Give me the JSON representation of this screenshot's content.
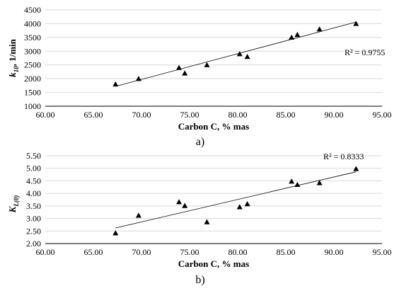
{
  "chart_data": [
    {
      "type": "scatter",
      "panel_label": "a)",
      "xlabel": "Carbon C, % mas",
      "ylabel_main": "k",
      "ylabel_sub": "10",
      "ylabel_rest": ", 1/min",
      "xlim": [
        60,
        95
      ],
      "ylim": [
        1000,
        4500
      ],
      "xticks": [
        "60.00",
        "65.00",
        "70.00",
        "75.00",
        "80.00",
        "85.00",
        "90.00",
        "95.00"
      ],
      "yticks": [
        "1000",
        "1500",
        "2000",
        "2500",
        "3000",
        "3500",
        "4000",
        "4500"
      ],
      "xtick_values": [
        60,
        65,
        70,
        75,
        80,
        85,
        90,
        95
      ],
      "ytick_values": [
        1000,
        1500,
        2000,
        2500,
        3000,
        3500,
        4000,
        4500
      ],
      "grid": "horizontal",
      "r2_label": "R² = 0.9755",
      "series": [
        {
          "marker": "triangle",
          "x": [
            67.3,
            69.7,
            73.9,
            74.5,
            76.8,
            80.2,
            81.0,
            85.6,
            86.2,
            88.5,
            92.3
          ],
          "y": [
            1800,
            2000,
            2400,
            2200,
            2500,
            2900,
            2800,
            3500,
            3600,
            3800,
            4000
          ]
        }
      ],
      "trendline": {
        "x": [
          67.3,
          92.3
        ],
        "y": [
          1720,
          4060
        ]
      }
    },
    {
      "type": "scatter",
      "panel_label": "b)",
      "xlabel": "Carbon C, % mas",
      "ylabel_main": "K",
      "ylabel_sub": "L(0)",
      "ylabel_rest": "",
      "xlim": [
        60,
        95
      ],
      "ylim": [
        2.0,
        5.5
      ],
      "xticks": [
        "60.00",
        "65.00",
        "70.00",
        "75.00",
        "80.00",
        "85.00",
        "90.00",
        "95.00"
      ],
      "yticks": [
        "2.00",
        "2.50",
        "3.00",
        "3.50",
        "4.00",
        "4.50",
        "5.00",
        "5.50"
      ],
      "xtick_values": [
        60,
        65,
        70,
        75,
        80,
        85,
        90,
        95
      ],
      "ytick_values": [
        2.0,
        2.5,
        3.0,
        3.5,
        4.0,
        4.5,
        5.0,
        5.5
      ],
      "grid": "horizontal",
      "r2_label": "R² = 0.8333",
      "series": [
        {
          "marker": "triangle",
          "x": [
            67.3,
            69.7,
            73.9,
            74.5,
            76.8,
            80.2,
            81.0,
            85.6,
            86.2,
            88.5,
            92.3
          ],
          "y": [
            2.42,
            3.12,
            3.66,
            3.51,
            2.86,
            3.46,
            3.58,
            4.48,
            4.35,
            4.42,
            4.98
          ]
        }
      ],
      "trendline": {
        "x": [
          67.3,
          92.3
        ],
        "y": [
          2.62,
          4.86
        ]
      }
    }
  ]
}
